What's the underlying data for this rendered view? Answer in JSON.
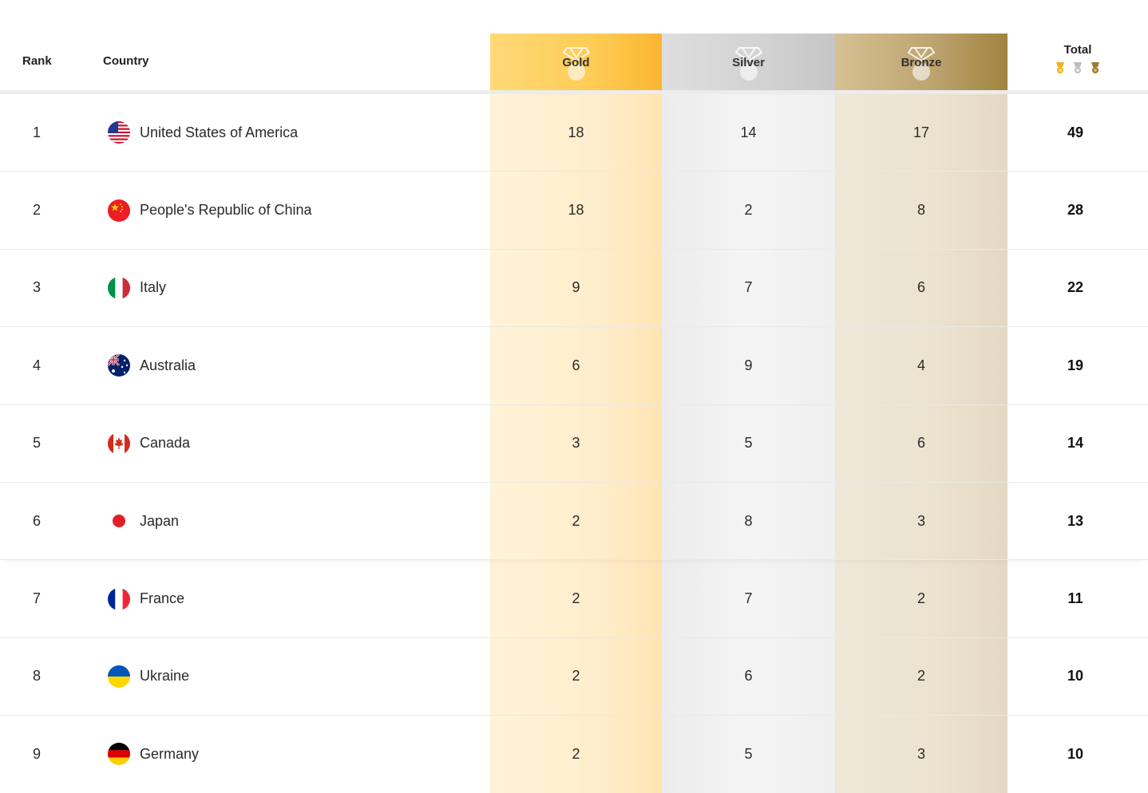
{
  "header": {
    "rank": "Rank",
    "country": "Country",
    "gold": "Gold",
    "silver": "Silver",
    "bronze": "Bronze",
    "total": "Total"
  },
  "colors": {
    "gold": "#fbb531",
    "silver": "#c6c6c6",
    "bronze": "#a0843f"
  },
  "rows": [
    {
      "rank": "1",
      "country": "United States of America",
      "flag": "usa-flag",
      "gold": "18",
      "silver": "14",
      "bronze": "17",
      "total": "49"
    },
    {
      "rank": "2",
      "country": "People's Republic of China",
      "flag": "china-flag",
      "gold": "18",
      "silver": "2",
      "bronze": "8",
      "total": "28"
    },
    {
      "rank": "3",
      "country": "Italy",
      "flag": "italy-flag",
      "gold": "9",
      "silver": "7",
      "bronze": "6",
      "total": "22"
    },
    {
      "rank": "4",
      "country": "Australia",
      "flag": "australia-flag",
      "gold": "6",
      "silver": "9",
      "bronze": "4",
      "total": "19"
    },
    {
      "rank": "5",
      "country": "Canada",
      "flag": "canada-flag",
      "gold": "3",
      "silver": "5",
      "bronze": "6",
      "total": "14"
    },
    {
      "rank": "6",
      "country": "Japan",
      "flag": "japan-flag",
      "gold": "2",
      "silver": "8",
      "bronze": "3",
      "total": "13"
    },
    {
      "rank": "7",
      "country": "France",
      "flag": "france-flag",
      "gold": "2",
      "silver": "7",
      "bronze": "2",
      "total": "11"
    },
    {
      "rank": "8",
      "country": "Ukraine",
      "flag": "ukraine-flag",
      "gold": "2",
      "silver": "6",
      "bronze": "2",
      "total": "10"
    },
    {
      "rank": "9",
      "country": "Germany",
      "flag": "germany-flag",
      "gold": "2",
      "silver": "5",
      "bronze": "3",
      "total": "10"
    }
  ]
}
